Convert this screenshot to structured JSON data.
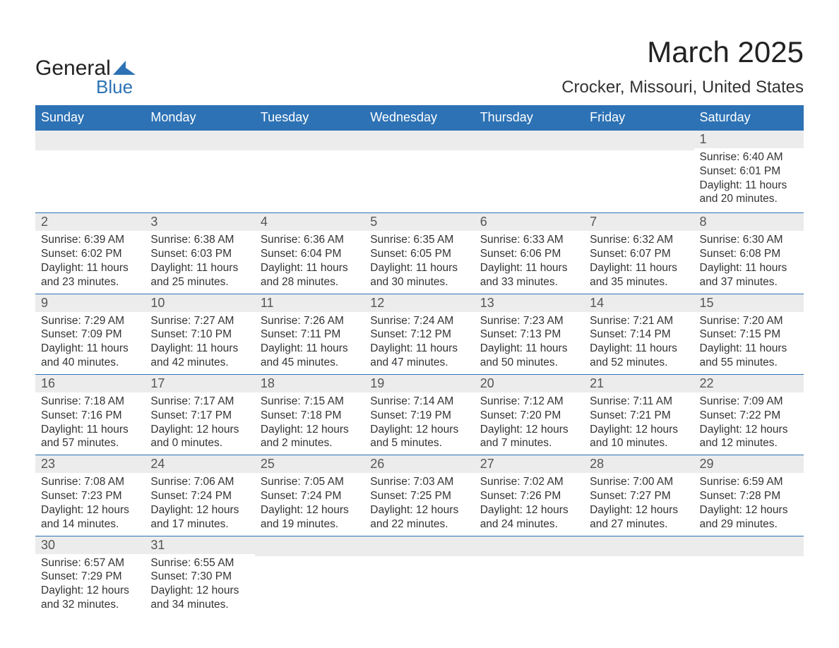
{
  "brand": {
    "word1": "General",
    "word2": "Blue",
    "word1_color": "#222222",
    "word2_color": "#2d72b5",
    "shape_color": "#2d72b5"
  },
  "title": "March 2025",
  "location": "Crocker, Missouri, United States",
  "colors": {
    "header_bg": "#2d72b5",
    "header_text": "#ffffff",
    "daynum_bg": "#ececec",
    "daynum_text": "#555555",
    "body_text": "#333333",
    "rule": "#2d72b5",
    "page_bg": "#ffffff"
  },
  "typography": {
    "title_fontsize": 42,
    "location_fontsize": 24,
    "dow_fontsize": 18,
    "daynum_fontsize": 18,
    "body_fontsize": 15.5
  },
  "days_of_week": [
    "Sunday",
    "Monday",
    "Tuesday",
    "Wednesday",
    "Thursday",
    "Friday",
    "Saturday"
  ],
  "weeks": [
    [
      {
        "n": "",
        "sunrise": "",
        "sunset": "",
        "daylight": ""
      },
      {
        "n": "",
        "sunrise": "",
        "sunset": "",
        "daylight": ""
      },
      {
        "n": "",
        "sunrise": "",
        "sunset": "",
        "daylight": ""
      },
      {
        "n": "",
        "sunrise": "",
        "sunset": "",
        "daylight": ""
      },
      {
        "n": "",
        "sunrise": "",
        "sunset": "",
        "daylight": ""
      },
      {
        "n": "",
        "sunrise": "",
        "sunset": "",
        "daylight": ""
      },
      {
        "n": "1",
        "sunrise": "Sunrise: 6:40 AM",
        "sunset": "Sunset: 6:01 PM",
        "daylight": "Daylight: 11 hours and 20 minutes."
      }
    ],
    [
      {
        "n": "2",
        "sunrise": "Sunrise: 6:39 AM",
        "sunset": "Sunset: 6:02 PM",
        "daylight": "Daylight: 11 hours and 23 minutes."
      },
      {
        "n": "3",
        "sunrise": "Sunrise: 6:38 AM",
        "sunset": "Sunset: 6:03 PM",
        "daylight": "Daylight: 11 hours and 25 minutes."
      },
      {
        "n": "4",
        "sunrise": "Sunrise: 6:36 AM",
        "sunset": "Sunset: 6:04 PM",
        "daylight": "Daylight: 11 hours and 28 minutes."
      },
      {
        "n": "5",
        "sunrise": "Sunrise: 6:35 AM",
        "sunset": "Sunset: 6:05 PM",
        "daylight": "Daylight: 11 hours and 30 minutes."
      },
      {
        "n": "6",
        "sunrise": "Sunrise: 6:33 AM",
        "sunset": "Sunset: 6:06 PM",
        "daylight": "Daylight: 11 hours and 33 minutes."
      },
      {
        "n": "7",
        "sunrise": "Sunrise: 6:32 AM",
        "sunset": "Sunset: 6:07 PM",
        "daylight": "Daylight: 11 hours and 35 minutes."
      },
      {
        "n": "8",
        "sunrise": "Sunrise: 6:30 AM",
        "sunset": "Sunset: 6:08 PM",
        "daylight": "Daylight: 11 hours and 37 minutes."
      }
    ],
    [
      {
        "n": "9",
        "sunrise": "Sunrise: 7:29 AM",
        "sunset": "Sunset: 7:09 PM",
        "daylight": "Daylight: 11 hours and 40 minutes."
      },
      {
        "n": "10",
        "sunrise": "Sunrise: 7:27 AM",
        "sunset": "Sunset: 7:10 PM",
        "daylight": "Daylight: 11 hours and 42 minutes."
      },
      {
        "n": "11",
        "sunrise": "Sunrise: 7:26 AM",
        "sunset": "Sunset: 7:11 PM",
        "daylight": "Daylight: 11 hours and 45 minutes."
      },
      {
        "n": "12",
        "sunrise": "Sunrise: 7:24 AM",
        "sunset": "Sunset: 7:12 PM",
        "daylight": "Daylight: 11 hours and 47 minutes."
      },
      {
        "n": "13",
        "sunrise": "Sunrise: 7:23 AM",
        "sunset": "Sunset: 7:13 PM",
        "daylight": "Daylight: 11 hours and 50 minutes."
      },
      {
        "n": "14",
        "sunrise": "Sunrise: 7:21 AM",
        "sunset": "Sunset: 7:14 PM",
        "daylight": "Daylight: 11 hours and 52 minutes."
      },
      {
        "n": "15",
        "sunrise": "Sunrise: 7:20 AM",
        "sunset": "Sunset: 7:15 PM",
        "daylight": "Daylight: 11 hours and 55 minutes."
      }
    ],
    [
      {
        "n": "16",
        "sunrise": "Sunrise: 7:18 AM",
        "sunset": "Sunset: 7:16 PM",
        "daylight": "Daylight: 11 hours and 57 minutes."
      },
      {
        "n": "17",
        "sunrise": "Sunrise: 7:17 AM",
        "sunset": "Sunset: 7:17 PM",
        "daylight": "Daylight: 12 hours and 0 minutes."
      },
      {
        "n": "18",
        "sunrise": "Sunrise: 7:15 AM",
        "sunset": "Sunset: 7:18 PM",
        "daylight": "Daylight: 12 hours and 2 minutes."
      },
      {
        "n": "19",
        "sunrise": "Sunrise: 7:14 AM",
        "sunset": "Sunset: 7:19 PM",
        "daylight": "Daylight: 12 hours and 5 minutes."
      },
      {
        "n": "20",
        "sunrise": "Sunrise: 7:12 AM",
        "sunset": "Sunset: 7:20 PM",
        "daylight": "Daylight: 12 hours and 7 minutes."
      },
      {
        "n": "21",
        "sunrise": "Sunrise: 7:11 AM",
        "sunset": "Sunset: 7:21 PM",
        "daylight": "Daylight: 12 hours and 10 minutes."
      },
      {
        "n": "22",
        "sunrise": "Sunrise: 7:09 AM",
        "sunset": "Sunset: 7:22 PM",
        "daylight": "Daylight: 12 hours and 12 minutes."
      }
    ],
    [
      {
        "n": "23",
        "sunrise": "Sunrise: 7:08 AM",
        "sunset": "Sunset: 7:23 PM",
        "daylight": "Daylight: 12 hours and 14 minutes."
      },
      {
        "n": "24",
        "sunrise": "Sunrise: 7:06 AM",
        "sunset": "Sunset: 7:24 PM",
        "daylight": "Daylight: 12 hours and 17 minutes."
      },
      {
        "n": "25",
        "sunrise": "Sunrise: 7:05 AM",
        "sunset": "Sunset: 7:24 PM",
        "daylight": "Daylight: 12 hours and 19 minutes."
      },
      {
        "n": "26",
        "sunrise": "Sunrise: 7:03 AM",
        "sunset": "Sunset: 7:25 PM",
        "daylight": "Daylight: 12 hours and 22 minutes."
      },
      {
        "n": "27",
        "sunrise": "Sunrise: 7:02 AM",
        "sunset": "Sunset: 7:26 PM",
        "daylight": "Daylight: 12 hours and 24 minutes."
      },
      {
        "n": "28",
        "sunrise": "Sunrise: 7:00 AM",
        "sunset": "Sunset: 7:27 PM",
        "daylight": "Daylight: 12 hours and 27 minutes."
      },
      {
        "n": "29",
        "sunrise": "Sunrise: 6:59 AM",
        "sunset": "Sunset: 7:28 PM",
        "daylight": "Daylight: 12 hours and 29 minutes."
      }
    ],
    [
      {
        "n": "30",
        "sunrise": "Sunrise: 6:57 AM",
        "sunset": "Sunset: 7:29 PM",
        "daylight": "Daylight: 12 hours and 32 minutes."
      },
      {
        "n": "31",
        "sunrise": "Sunrise: 6:55 AM",
        "sunset": "Sunset: 7:30 PM",
        "daylight": "Daylight: 12 hours and 34 minutes."
      },
      {
        "n": "",
        "sunrise": "",
        "sunset": "",
        "daylight": ""
      },
      {
        "n": "",
        "sunrise": "",
        "sunset": "",
        "daylight": ""
      },
      {
        "n": "",
        "sunrise": "",
        "sunset": "",
        "daylight": ""
      },
      {
        "n": "",
        "sunrise": "",
        "sunset": "",
        "daylight": ""
      },
      {
        "n": "",
        "sunrise": "",
        "sunset": "",
        "daylight": ""
      }
    ]
  ]
}
